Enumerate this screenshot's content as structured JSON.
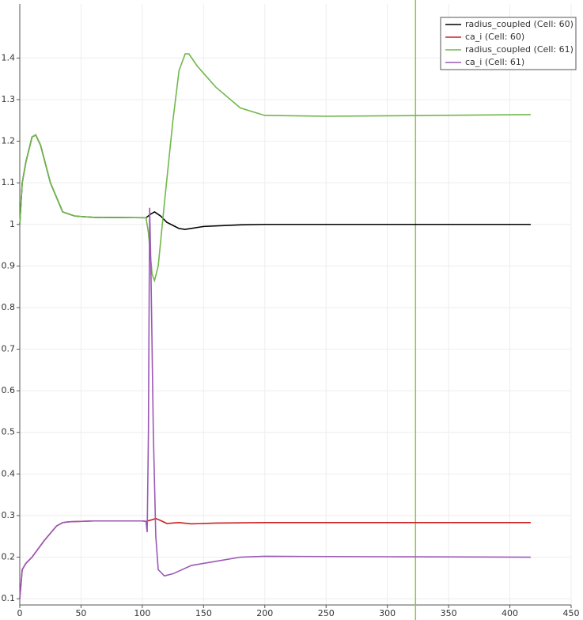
{
  "chart_data": {
    "type": "line",
    "xlim": [
      0,
      450
    ],
    "xticks": [
      0,
      50,
      100,
      150,
      200,
      250,
      300,
      350,
      400,
      450
    ],
    "ylim": [
      0.085,
      1.53
    ],
    "yticks": [
      0.1,
      0.2,
      0.3,
      0.4,
      0.5,
      0.6,
      0.7,
      0.8,
      0.9,
      1,
      1.1,
      1.2,
      1.3,
      1.4
    ],
    "grid": true,
    "legend": "top-right",
    "marker_line": {
      "x": 323,
      "color": "#8dc63f"
    },
    "series": [
      {
        "name": "radius_coupled (Cell: 60)",
        "color": "#000000",
        "x": [
          0,
          2,
          5,
          10,
          13,
          17,
          25,
          35,
          45,
          60,
          103,
          107,
          110,
          115,
          120,
          130,
          135,
          150,
          180,
          200,
          417
        ],
        "values": [
          1.0,
          1.1,
          1.15,
          1.21,
          1.215,
          1.19,
          1.1,
          1.03,
          1.02,
          1.017,
          1.016,
          1.025,
          1.03,
          1.02,
          1.005,
          0.99,
          0.988,
          0.995,
          0.999,
          1.0,
          1.0
        ]
      },
      {
        "name": "ca_i (Cell: 60)",
        "color": "#cc2222",
        "x": [
          0,
          2,
          5,
          10,
          20,
          30,
          35,
          40,
          60,
          100,
          103,
          108,
          111,
          115,
          120,
          130,
          140,
          160,
          200,
          417
        ],
        "values": [
          0.1,
          0.17,
          0.185,
          0.2,
          0.24,
          0.275,
          0.283,
          0.285,
          0.287,
          0.287,
          0.286,
          0.29,
          0.293,
          0.288,
          0.281,
          0.283,
          0.28,
          0.282,
          0.283,
          0.283
        ]
      },
      {
        "name": "radius_coupled (Cell: 61)",
        "color": "#70b84a",
        "x": [
          0,
          2,
          5,
          10,
          13,
          17,
          25,
          35,
          45,
          60,
          103,
          105,
          108,
          110,
          113,
          118,
          125,
          130,
          135,
          138,
          145,
          160,
          180,
          200,
          250,
          300,
          417
        ],
        "values": [
          1.0,
          1.1,
          1.15,
          1.21,
          1.215,
          1.19,
          1.1,
          1.03,
          1.02,
          1.017,
          1.016,
          0.98,
          0.88,
          0.865,
          0.9,
          1.05,
          1.25,
          1.37,
          1.41,
          1.41,
          1.38,
          1.33,
          1.28,
          1.262,
          1.26,
          1.261,
          1.264
        ]
      },
      {
        "name": "ca_i (Cell: 61)",
        "color": "#9b59b6",
        "x": [
          0,
          2,
          5,
          10,
          20,
          30,
          35,
          40,
          60,
          100,
          103,
          104,
          105,
          106,
          107,
          109,
          111,
          113,
          118,
          125,
          140,
          160,
          180,
          200,
          300,
          417
        ],
        "values": [
          0.1,
          0.17,
          0.185,
          0.2,
          0.24,
          0.275,
          0.283,
          0.285,
          0.287,
          0.287,
          0.286,
          0.26,
          0.5,
          1.04,
          0.9,
          0.5,
          0.25,
          0.17,
          0.155,
          0.16,
          0.18,
          0.19,
          0.2,
          0.202,
          0.201,
          0.2
        ]
      }
    ]
  }
}
